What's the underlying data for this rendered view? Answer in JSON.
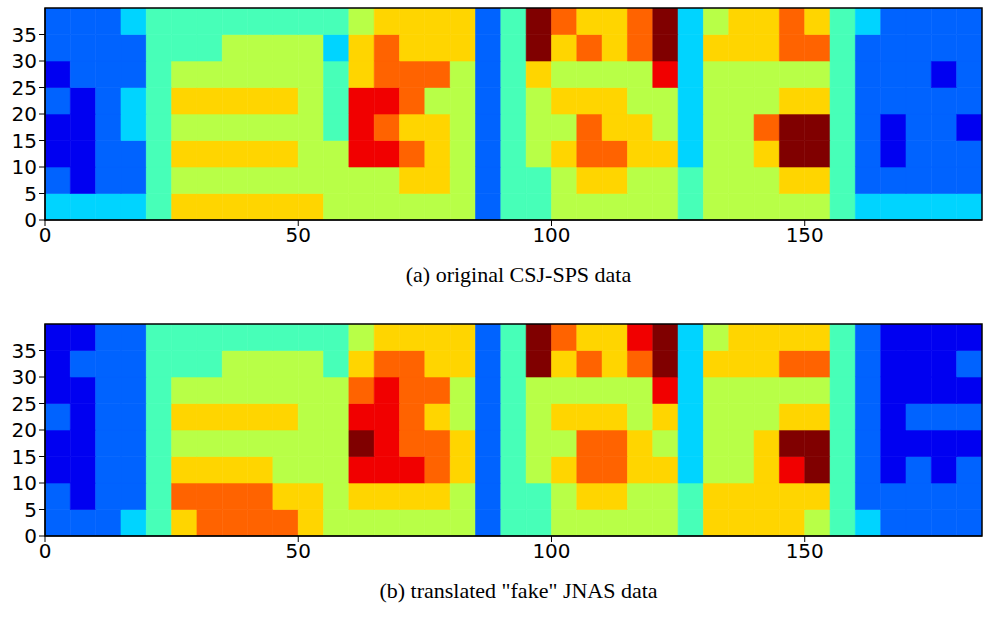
{
  "chart_data": [
    {
      "type": "heatmap",
      "title": "(a) original CSJ-SPS data",
      "xlim": [
        0,
        185
      ],
      "xticks": [
        0,
        50,
        100,
        150
      ],
      "ylim": [
        0,
        40
      ],
      "yticks": [
        0,
        5,
        10,
        15,
        20,
        25,
        30,
        35
      ],
      "zlim": [
        0,
        9
      ],
      "cells": [
        [
          3,
          3,
          3,
          3,
          4,
          6,
          6,
          6,
          6,
          6,
          6,
          5,
          5,
          5,
          5,
          5,
          5,
          2,
          4,
          4,
          5,
          5,
          5,
          5,
          5,
          4,
          5,
          5,
          5,
          5,
          5,
          4,
          3,
          3,
          3,
          3,
          3
        ],
        [
          2,
          1,
          2,
          2,
          4,
          5,
          5,
          5,
          5,
          5,
          5,
          5,
          5,
          5,
          6,
          6,
          5,
          2,
          4,
          4,
          5,
          6,
          6,
          5,
          5,
          4,
          5,
          5,
          5,
          6,
          6,
          4,
          2,
          2,
          2,
          2,
          2
        ],
        [
          1,
          1,
          2,
          2,
          4,
          6,
          6,
          6,
          6,
          6,
          5,
          5,
          8,
          8,
          7,
          6,
          5,
          2,
          4,
          5,
          6,
          7,
          7,
          6,
          6,
          3,
          5,
          5,
          6,
          9,
          9,
          4,
          2,
          1,
          2,
          2,
          2
        ],
        [
          1,
          1,
          2,
          3,
          4,
          5,
          5,
          5,
          5,
          5,
          5,
          4,
          8,
          7,
          6,
          6,
          5,
          2,
          4,
          5,
          5,
          7,
          6,
          6,
          5,
          3,
          5,
          5,
          7,
          9,
          9,
          4,
          2,
          1,
          2,
          2,
          1
        ],
        [
          2,
          1,
          2,
          3,
          4,
          6,
          6,
          6,
          6,
          6,
          5,
          4,
          8,
          8,
          7,
          5,
          5,
          2,
          4,
          5,
          6,
          6,
          6,
          5,
          5,
          3,
          5,
          5,
          5,
          6,
          6,
          4,
          2,
          2,
          2,
          2,
          2
        ],
        [
          1,
          2,
          2,
          2,
          4,
          5,
          5,
          5,
          5,
          5,
          5,
          4,
          6,
          7,
          7,
          7,
          5,
          2,
          4,
          6,
          5,
          5,
          5,
          5,
          8,
          3,
          5,
          5,
          5,
          5,
          5,
          4,
          2,
          2,
          2,
          1,
          2
        ],
        [
          2,
          2,
          2,
          2,
          4,
          4,
          4,
          5,
          5,
          5,
          5,
          3,
          6,
          7,
          6,
          6,
          6,
          2,
          4,
          9,
          6,
          7,
          6,
          7,
          9,
          3,
          6,
          6,
          6,
          7,
          7,
          4,
          2,
          2,
          2,
          2,
          2
        ],
        [
          2,
          2,
          2,
          3,
          4,
          4,
          4,
          4,
          4,
          4,
          4,
          4,
          5,
          6,
          6,
          6,
          6,
          2,
          4,
          9,
          7,
          6,
          6,
          7,
          9,
          3,
          5,
          6,
          6,
          7,
          6,
          4,
          3,
          2,
          2,
          2,
          2
        ]
      ]
    },
    {
      "type": "heatmap",
      "title": "(b) translated \"fake\" JNAS data",
      "xlim": [
        0,
        185
      ],
      "xticks": [
        0,
        50,
        100,
        150
      ],
      "ylim": [
        0,
        40
      ],
      "yticks": [
        0,
        5,
        10,
        15,
        20,
        25,
        30,
        35
      ],
      "zlim": [
        0,
        9
      ],
      "cells": [
        [
          2,
          2,
          2,
          3,
          4,
          6,
          7,
          7,
          7,
          7,
          6,
          5,
          5,
          5,
          5,
          5,
          5,
          2,
          4,
          4,
          5,
          5,
          5,
          5,
          5,
          4,
          6,
          6,
          6,
          6,
          5,
          4,
          3,
          2,
          2,
          2,
          2
        ],
        [
          2,
          1,
          2,
          2,
          4,
          7,
          7,
          7,
          7,
          6,
          6,
          5,
          6,
          6,
          6,
          6,
          5,
          2,
          4,
          4,
          5,
          6,
          6,
          5,
          5,
          4,
          6,
          6,
          6,
          6,
          6,
          4,
          2,
          2,
          2,
          2,
          2
        ],
        [
          1,
          1,
          2,
          2,
          4,
          6,
          6,
          6,
          6,
          5,
          5,
          5,
          8,
          8,
          8,
          7,
          6,
          2,
          4,
          5,
          6,
          7,
          7,
          6,
          6,
          3,
          5,
          5,
          6,
          8,
          9,
          4,
          2,
          1,
          2,
          1,
          2
        ],
        [
          1,
          1,
          2,
          2,
          4,
          5,
          5,
          5,
          5,
          5,
          5,
          5,
          9,
          8,
          7,
          7,
          6,
          2,
          4,
          5,
          5,
          7,
          7,
          6,
          5,
          3,
          5,
          5,
          6,
          9,
          9,
          4,
          2,
          1,
          1,
          1,
          1
        ],
        [
          2,
          1,
          2,
          2,
          4,
          6,
          6,
          6,
          6,
          6,
          5,
          5,
          8,
          8,
          7,
          6,
          5,
          2,
          4,
          5,
          6,
          6,
          6,
          5,
          6,
          3,
          5,
          5,
          5,
          6,
          6,
          4,
          2,
          1,
          2,
          2,
          2
        ],
        [
          1,
          1,
          2,
          2,
          4,
          5,
          5,
          5,
          5,
          5,
          5,
          5,
          7,
          8,
          7,
          7,
          5,
          2,
          4,
          5,
          5,
          5,
          5,
          5,
          8,
          3,
          5,
          5,
          5,
          5,
          5,
          4,
          2,
          1,
          1,
          1,
          1
        ],
        [
          1,
          2,
          2,
          2,
          4,
          4,
          4,
          5,
          5,
          5,
          5,
          4,
          6,
          7,
          7,
          6,
          6,
          2,
          4,
          9,
          6,
          7,
          6,
          7,
          9,
          3,
          6,
          6,
          6,
          7,
          7,
          4,
          2,
          1,
          1,
          1,
          2
        ],
        [
          1,
          1,
          2,
          2,
          4,
          4,
          4,
          4,
          4,
          4,
          4,
          4,
          5,
          6,
          6,
          6,
          6,
          2,
          4,
          9,
          7,
          6,
          6,
          8,
          9,
          3,
          5,
          6,
          6,
          6,
          6,
          4,
          2,
          1,
          1,
          1,
          1
        ]
      ]
    }
  ]
}
